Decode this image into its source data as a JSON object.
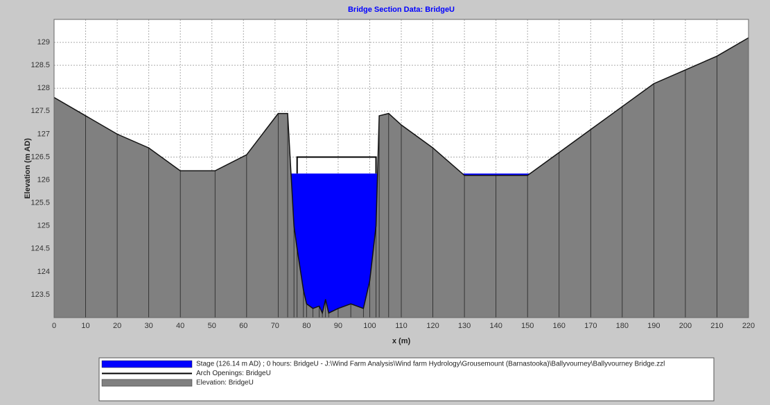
{
  "chart_data": {
    "type": "section",
    "title": "Bridge Section Data: BridgeU",
    "xlabel": "x (m)",
    "ylabel": "Elevation (m AD)",
    "xlim": [
      0,
      220
    ],
    "ylim": [
      123,
      129.5
    ],
    "xticks": [
      0,
      10,
      20,
      30,
      40,
      50,
      60,
      70,
      80,
      90,
      100,
      110,
      120,
      130,
      140,
      150,
      160,
      170,
      180,
      190,
      200,
      210,
      220
    ],
    "yticks": [
      123.5,
      124,
      124.5,
      125,
      125.5,
      126,
      126.5,
      127,
      127.5,
      128,
      128.5,
      129
    ],
    "grid": true,
    "series": [
      {
        "name": "Stage (126.14 m AD) ; 0 hours: BridgeU - J:\\Wind Farm Analysis\\Wind farm Hydrology\\Grousemount (Barnastooka)\\Ballyvourney\\Ballyvourney Bridge.zzl",
        "color": "#0000ff",
        "x": [
          0,
          220
        ],
        "values": [
          126.14,
          126.14
        ]
      },
      {
        "name": "Arch Openings: BridgeU",
        "color": "#000000",
        "x": [
          77,
          77,
          102,
          102
        ],
        "values": [
          126.14,
          126.5,
          126.5,
          126.14
        ]
      },
      {
        "name": "Elevation: BridgeU",
        "color": "#808080",
        "x": [
          0,
          10,
          20,
          30,
          40,
          51,
          61,
          71,
          74,
          76,
          77,
          79,
          80,
          82,
          84,
          85,
          86,
          87,
          90,
          94,
          98,
          100,
          102,
          103,
          106,
          110,
          120,
          130,
          140,
          150,
          160,
          170,
          180,
          190,
          200,
          210,
          220
        ],
        "values": [
          127.8,
          127.4,
          127.0,
          126.7,
          126.2,
          126.2,
          126.55,
          127.45,
          127.45,
          125.0,
          124.5,
          123.6,
          123.3,
          123.2,
          123.25,
          123.1,
          123.4,
          123.1,
          123.2,
          123.3,
          123.2,
          123.8,
          125.0,
          127.4,
          127.45,
          127.2,
          126.7,
          126.1,
          126.1,
          126.1,
          126.6,
          127.1,
          127.6,
          128.1,
          128.4,
          128.7,
          129.1
        ]
      }
    ]
  }
}
